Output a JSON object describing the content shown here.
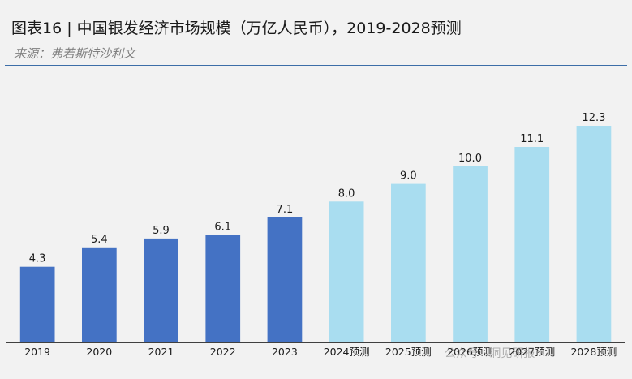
{
  "header": {
    "title": "图表16 | 中国银发经济市场规模（万亿人民币），2019-2028预测",
    "source": "来源：弗若斯特沙利文"
  },
  "watermark": "公众号 · 洞见研报",
  "colors": {
    "actual": "#4472c4",
    "forecast": "#a9ddf0",
    "rule": "#3d6ea8",
    "axis": "#404040"
  },
  "chart_data": {
    "type": "bar",
    "categories": [
      "2019",
      "2020",
      "2021",
      "2022",
      "2023",
      "2024预测",
      "2025预测",
      "2026预测",
      "2027预测",
      "2028预测"
    ],
    "values": [
      4.3,
      5.4,
      5.9,
      6.1,
      7.1,
      8.0,
      9.0,
      10.0,
      11.1,
      12.3
    ],
    "value_labels": [
      "4.3",
      "5.4",
      "5.9",
      "6.1",
      "7.1",
      "8.0",
      "9.0",
      "10.0",
      "11.1",
      "12.3"
    ],
    "forecast_from_index": 5,
    "ylim": [
      0,
      12.3
    ],
    "grid": false,
    "legend": "none",
    "title": "",
    "xlabel": "",
    "ylabel": ""
  }
}
